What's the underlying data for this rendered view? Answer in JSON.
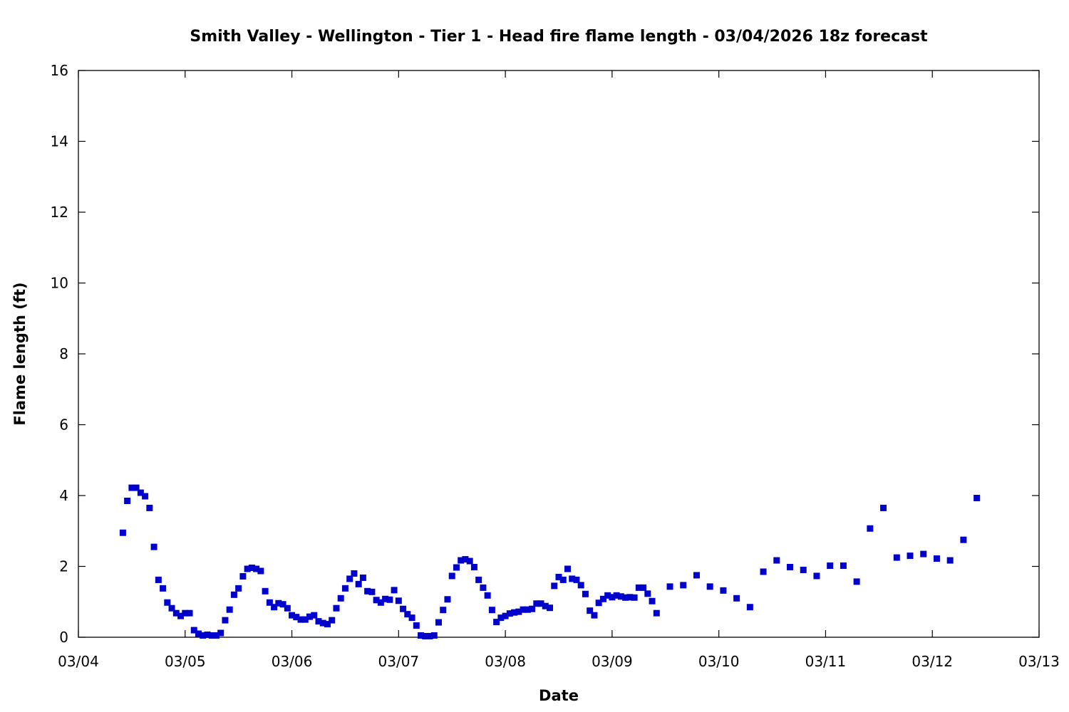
{
  "chart_data": {
    "type": "scatter",
    "title": "Smith Valley - Wellington - Tier 1 - Head fire flame length - 03/04/2026 18z forecast",
    "xlabel": "Date",
    "ylabel": "Flame length (ft)",
    "xlim": [
      "03/04",
      "03/13"
    ],
    "ylim": [
      0,
      16
    ],
    "x_ticks": [
      "03/04",
      "03/05",
      "03/06",
      "03/07",
      "03/08",
      "03/09",
      "03/10",
      "03/11",
      "03/12",
      "03/13"
    ],
    "y_ticks": [
      0,
      2,
      4,
      6,
      8,
      10,
      12,
      14,
      16
    ],
    "grid": false,
    "legend": "none",
    "marker": "square",
    "color": "#0000cc",
    "series": [
      {
        "x": [
          "03/04 10:00",
          "03/04 11:00",
          "03/04 12:00",
          "03/04 13:00",
          "03/04 14:00",
          "03/04 15:00",
          "03/04 16:00",
          "03/04 17:00",
          "03/04 18:00",
          "03/04 19:00",
          "03/04 20:00",
          "03/04 21:00",
          "03/04 22:00",
          "03/04 23:00",
          "03/05 00:00",
          "03/05 01:00",
          "03/05 02:00",
          "03/05 03:00",
          "03/05 04:00",
          "03/05 05:00",
          "03/05 06:00",
          "03/05 07:00",
          "03/05 08:00",
          "03/05 09:00",
          "03/05 10:00",
          "03/05 11:00",
          "03/05 12:00",
          "03/05 13:00",
          "03/05 14:00",
          "03/05 15:00",
          "03/05 16:00",
          "03/05 17:00",
          "03/05 18:00",
          "03/05 19:00",
          "03/05 20:00",
          "03/05 21:00",
          "03/05 22:00",
          "03/05 23:00",
          "03/06 00:00",
          "03/06 01:00",
          "03/06 02:00",
          "03/06 03:00",
          "03/06 04:00",
          "03/06 05:00",
          "03/06 06:00",
          "03/06 07:00",
          "03/06 08:00",
          "03/06 09:00",
          "03/06 10:00",
          "03/06 11:00",
          "03/06 12:00",
          "03/06 13:00",
          "03/06 14:00",
          "03/06 15:00",
          "03/06 16:00",
          "03/06 17:00",
          "03/06 18:00",
          "03/06 19:00",
          "03/06 20:00",
          "03/06 21:00",
          "03/06 22:00",
          "03/06 23:00",
          "03/07 00:00",
          "03/07 01:00",
          "03/07 02:00",
          "03/07 03:00",
          "03/07 04:00",
          "03/07 05:00",
          "03/07 06:00",
          "03/07 07:00",
          "03/07 08:00",
          "03/07 09:00",
          "03/07 10:00",
          "03/07 11:00",
          "03/07 12:00",
          "03/07 13:00",
          "03/07 14:00",
          "03/07 15:00",
          "03/07 16:00",
          "03/07 17:00",
          "03/07 18:00",
          "03/07 19:00",
          "03/07 20:00",
          "03/07 21:00",
          "03/07 22:00",
          "03/07 23:00",
          "03/08 00:00",
          "03/08 01:00",
          "03/08 02:00",
          "03/08 03:00",
          "03/08 04:00",
          "03/08 05:00",
          "03/08 06:00",
          "03/08 07:00",
          "03/08 08:00",
          "03/08 09:00",
          "03/08 10:00",
          "03/08 11:00",
          "03/08 12:00",
          "03/08 13:00",
          "03/08 14:00",
          "03/08 15:00",
          "03/08 16:00",
          "03/08 17:00",
          "03/08 18:00",
          "03/08 19:00",
          "03/08 20:00",
          "03/08 21:00",
          "03/08 22:00",
          "03/08 23:00",
          "03/09 00:00",
          "03/09 01:00",
          "03/09 02:00",
          "03/09 03:00",
          "03/09 04:00",
          "03/09 05:00",
          "03/09 06:00",
          "03/09 07:00",
          "03/09 08:00",
          "03/09 09:00",
          "03/09 10:00",
          "03/09 13:00",
          "03/09 16:00",
          "03/09 19:00",
          "03/09 22:00",
          "03/10 01:00",
          "03/10 04:00",
          "03/10 07:00",
          "03/10 10:00",
          "03/10 13:00",
          "03/10 16:00",
          "03/10 19:00",
          "03/10 22:00",
          "03/11 01:00",
          "03/11 04:00",
          "03/11 07:00",
          "03/11 10:00",
          "03/11 13:00",
          "03/11 16:00",
          "03/11 19:00",
          "03/11 22:00",
          "03/12 01:00",
          "03/12 04:00",
          "03/12 07:00",
          "03/12 10:00"
        ],
        "y": [
          2.95,
          3.85,
          4.22,
          4.22,
          4.08,
          3.98,
          3.65,
          2.55,
          1.62,
          1.38,
          0.98,
          0.82,
          0.68,
          0.6,
          0.68,
          0.68,
          0.2,
          0.1,
          0.05,
          0.07,
          0.05,
          0.05,
          0.12,
          0.48,
          0.78,
          1.2,
          1.38,
          1.72,
          1.93,
          1.96,
          1.93,
          1.87,
          1.3,
          0.98,
          0.85,
          0.96,
          0.93,
          0.82,
          0.62,
          0.57,
          0.5,
          0.5,
          0.58,
          0.62,
          0.45,
          0.4,
          0.37,
          0.48,
          0.82,
          1.1,
          1.38,
          1.65,
          1.8,
          1.5,
          1.68,
          1.3,
          1.28,
          1.05,
          0.98,
          1.08,
          1.06,
          1.33,
          1.03,
          0.8,
          0.65,
          0.55,
          0.33,
          0.05,
          0.03,
          0.03,
          0.05,
          0.42,
          0.77,
          1.07,
          1.73,
          1.97,
          2.17,
          2.2,
          2.15,
          1.98,
          1.62,
          1.4,
          1.18,
          0.77,
          0.43,
          0.55,
          0.6,
          0.67,
          0.7,
          0.72,
          0.78,
          0.78,
          0.8,
          0.95,
          0.95,
          0.88,
          0.83,
          1.45,
          1.7,
          1.62,
          1.93,
          1.65,
          1.62,
          1.47,
          1.22,
          0.75,
          0.62,
          0.97,
          1.08,
          1.18,
          1.13,
          1.18,
          1.15,
          1.12,
          1.13,
          1.12,
          1.4,
          1.4,
          1.23,
          1.02,
          0.68,
          1.43,
          1.47,
          1.75,
          1.43,
          1.32,
          1.1,
          0.85,
          1.85,
          2.17,
          1.98,
          1.9,
          1.73,
          2.02,
          2.02,
          1.57,
          3.07,
          3.65,
          2.25,
          2.3,
          2.35,
          2.22,
          2.17,
          2.75,
          3.93
        ]
      }
    ]
  }
}
